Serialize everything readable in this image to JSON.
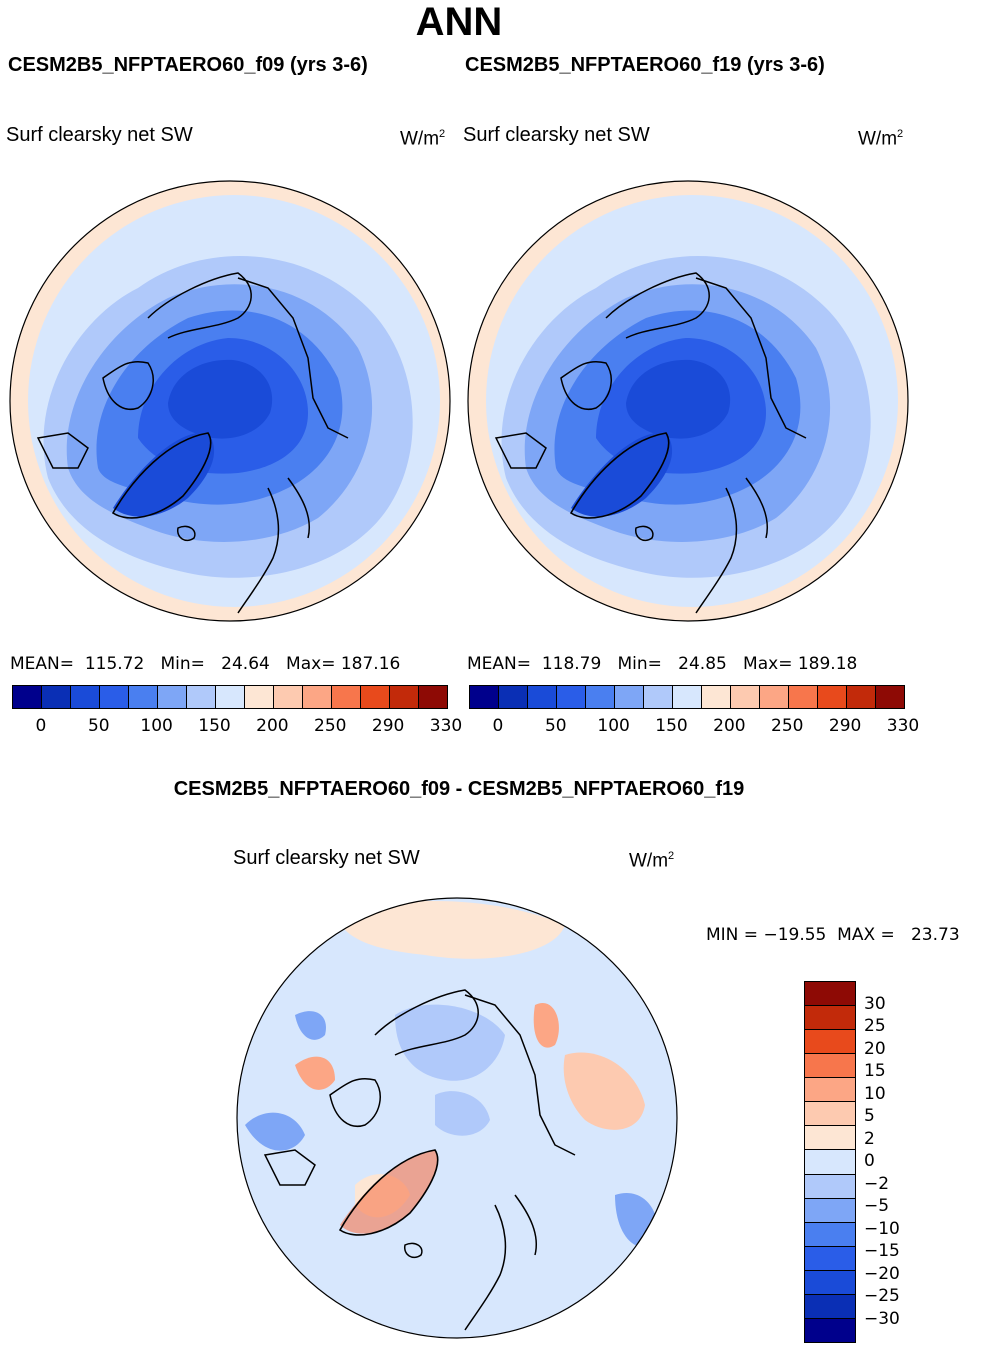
{
  "figure": {
    "title": "ANN"
  },
  "panels": [
    {
      "case_title": "CESM2B5_NFPTAERO60_f09 (yrs 3-6)",
      "variable": "Surf clearsky net SW",
      "units_base": "W/m",
      "units_exp": "2",
      "mean_label": "MEAN=",
      "mean": "115.72",
      "min_label": "Min=",
      "min": "24.64",
      "max_label": "Max=",
      "max": "187.16",
      "colorbar_ticks": [
        "0",
        "50",
        "100",
        "150",
        "200",
        "250",
        "290",
        "330"
      ]
    },
    {
      "case_title": "CESM2B5_NFPTAERO60_f19 (yrs 3-6)",
      "variable": "Surf clearsky net SW",
      "units_base": "W/m",
      "units_exp": "2",
      "mean_label": "MEAN=",
      "mean": "118.79",
      "min_label": "Min=",
      "min": "24.85",
      "max_label": "Max=",
      "max": "189.18",
      "colorbar_ticks": [
        "0",
        "50",
        "100",
        "150",
        "200",
        "250",
        "290",
        "330"
      ]
    }
  ],
  "difference": {
    "title": "CESM2B5_NFPTAERO60_f09 - CESM2B5_NFPTAERO60_f19",
    "variable": "Surf clearsky net SW",
    "units_base": "W/m",
    "units_exp": "2",
    "minmax_text": "MIN = −19.55  MAX =   23.73",
    "colorbar_ticks": [
      "30",
      "25",
      "20",
      "15",
      "10",
      "5",
      "2",
      "0",
      "−2",
      "−5",
      "−10",
      "−15",
      "−20",
      "−25",
      "−30"
    ]
  },
  "colors": {
    "abs_scale": [
      "#00008c",
      "#0a2fb5",
      "#1a4bd8",
      "#2a5de8",
      "#4a7ff0",
      "#7ea6f6",
      "#b0c9fa",
      "#d7e7fd",
      "#fde6d4",
      "#fdcab0",
      "#fca685",
      "#f7764c",
      "#e84a1c",
      "#c22a0a",
      "#8e0a05"
    ],
    "diff_scale": [
      "#8e0a05",
      "#c22a0a",
      "#e84a1c",
      "#f7764c",
      "#fca685",
      "#fdcab0",
      "#fde6d4",
      "#d7e7fd",
      "#b0c9fa",
      "#7ea6f6",
      "#4a7ff0",
      "#2a5de8",
      "#1a4bd8",
      "#0a2fb5",
      "#00008c"
    ]
  }
}
